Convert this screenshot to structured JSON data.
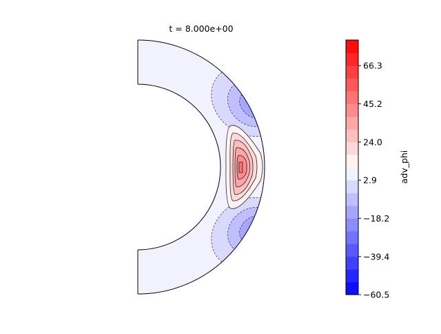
{
  "chart_data": {
    "type": "contour",
    "title": "t = 8.000e+00",
    "colorbar": {
      "label": "adv_phi",
      "vmin": -60.5,
      "vmax": 80.5,
      "n_levels": 20,
      "colormap": "bwr",
      "tick_values": [
        -60.5,
        -39.4,
        -18.2,
        2.9,
        24.0,
        45.2,
        66.3
      ],
      "tick_labels": [
        "−60.5",
        "−39.4",
        "−18.2",
        "2.9",
        "24.0",
        "45.2",
        "66.3"
      ]
    },
    "field": {
      "domain": "half-annulus (right hemisphere)",
      "positive_lobe": {
        "location": "equator, near outer boundary",
        "max_band_index": 15
      },
      "negative_lobes": [
        {
          "location": "upper mid-latitude",
          "min_band_index": 6
        },
        {
          "location": "lower mid-latitude",
          "min_band_index": 6
        }
      ]
    }
  }
}
